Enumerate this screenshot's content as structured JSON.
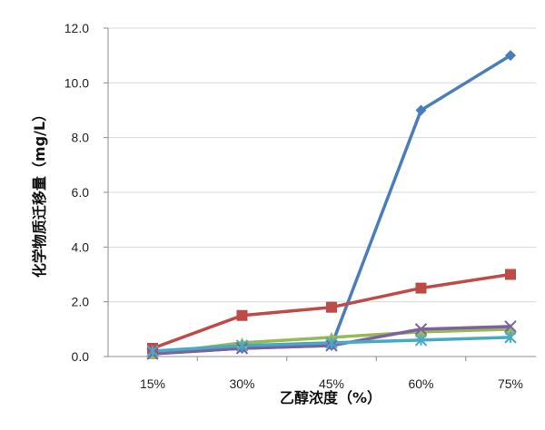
{
  "chart_data": {
    "type": "line",
    "xlabel": "乙醇浓度（%）",
    "ylabel": "化学物质迁移量（mg/L）",
    "categories": [
      "15%",
      "30%",
      "45%",
      "60%",
      "75%"
    ],
    "ylim": [
      0,
      12
    ],
    "yticks": [
      "0.0",
      "2.0",
      "4.0",
      "6.0",
      "8.0",
      "10.0",
      "12.0"
    ],
    "grid": "horizontal",
    "legend": "none",
    "series": [
      {
        "color": "#4a7ebb",
        "marker": "diamond",
        "values": [
          0.1,
          0.3,
          0.4,
          9.0,
          11.0
        ]
      },
      {
        "color": "#be4b48",
        "marker": "square",
        "values": [
          0.3,
          1.5,
          1.8,
          2.5,
          3.0
        ]
      },
      {
        "color": "#98b954",
        "marker": "triangle",
        "values": [
          0.1,
          0.5,
          0.7,
          0.9,
          1.0
        ]
      },
      {
        "color": "#7d60a0",
        "marker": "x",
        "values": [
          0.1,
          0.3,
          0.4,
          1.0,
          1.1
        ]
      },
      {
        "color": "#46aac5",
        "marker": "star",
        "values": [
          0.2,
          0.4,
          0.5,
          0.6,
          0.7
        ]
      }
    ]
  }
}
